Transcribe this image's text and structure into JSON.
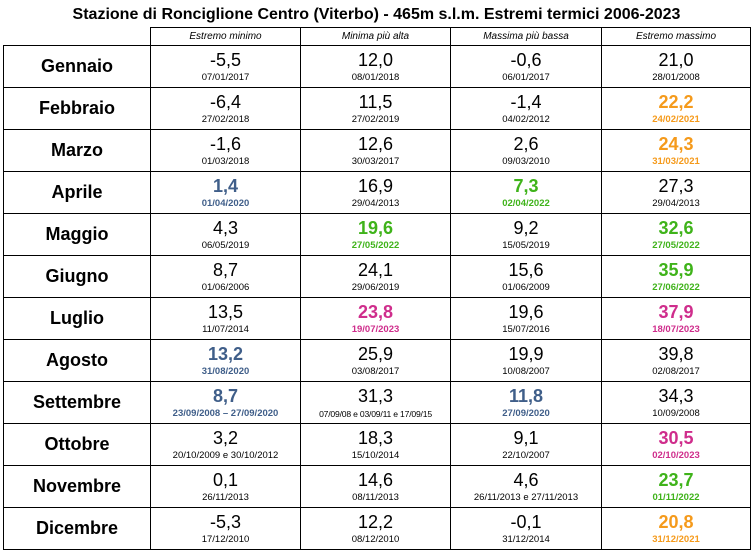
{
  "title": "Stazione di Ronciglione Centro (Viterbo)  - 465m s.l.m. Estremi termici 2006-2023",
  "headers": [
    "Estremo minimo",
    "Minima più alta",
    "Massima più bassa",
    "Estremo massimo"
  ],
  "colors": {
    "blue": "#3f5e89",
    "green": "#3fb31a",
    "orange": "#f59a1b",
    "magenta": "#cf2d8c",
    "black": "#000000"
  },
  "rows": [
    {
      "month": "Gennaio",
      "cells": [
        {
          "value": "-5,5",
          "date": "07/01/2017",
          "color": "black"
        },
        {
          "value": "12,0",
          "date": "08/01/2018",
          "color": "black"
        },
        {
          "value": "-0,6",
          "date": "06/01/2017",
          "color": "black"
        },
        {
          "value": "21,0",
          "date": "28/01/2008",
          "color": "black"
        }
      ]
    },
    {
      "month": "Febbraio",
      "cells": [
        {
          "value": "-6,4",
          "date": "27/02/2018",
          "color": "black"
        },
        {
          "value": "11,5",
          "date": "27/02/2019",
          "color": "black"
        },
        {
          "value": "-1,4",
          "date": "04/02/2012",
          "color": "black"
        },
        {
          "value": "22,2",
          "date": "24/02/2021",
          "color": "orange"
        }
      ]
    },
    {
      "month": "Marzo",
      "cells": [
        {
          "value": "-1,6",
          "date": "01/03/2018",
          "color": "black"
        },
        {
          "value": "12,6",
          "date": "30/03/2017",
          "color": "black"
        },
        {
          "value": "2,6",
          "date": "09/03/2010",
          "color": "black"
        },
        {
          "value": "24,3",
          "date": "31/03/2021",
          "color": "orange"
        }
      ]
    },
    {
      "month": "Aprile",
      "cells": [
        {
          "value": "1,4",
          "date": "01/04/2020",
          "color": "blue"
        },
        {
          "value": "16,9",
          "date": "29/04/2013",
          "color": "black"
        },
        {
          "value": "7,3",
          "date": "02/04/2022",
          "color": "green"
        },
        {
          "value": "27,3",
          "date": "29/04/2013",
          "color": "black"
        }
      ]
    },
    {
      "month": "Maggio",
      "cells": [
        {
          "value": "4,3",
          "date": "06/05/2019",
          "color": "black"
        },
        {
          "value": "19,6",
          "date": "27/05/2022",
          "color": "green"
        },
        {
          "value": "9,2",
          "date": "15/05/2019",
          "color": "black"
        },
        {
          "value": "32,6",
          "date": "27/05/2022",
          "color": "green"
        }
      ]
    },
    {
      "month": "Giugno",
      "cells": [
        {
          "value": "8,7",
          "date": "01/06/2006",
          "color": "black"
        },
        {
          "value": "24,1",
          "date": "29/06/2019",
          "color": "black"
        },
        {
          "value": "15,6",
          "date": "01/06/2009",
          "color": "black"
        },
        {
          "value": "35,9",
          "date": "27/06/2022",
          "color": "green"
        }
      ]
    },
    {
      "month": "Luglio",
      "cells": [
        {
          "value": "13,5",
          "date": "11/07/2014",
          "color": "black"
        },
        {
          "value": "23,8",
          "date": "19/07/2023",
          "color": "magenta"
        },
        {
          "value": "19,6",
          "date": "15/07/2016",
          "color": "black"
        },
        {
          "value": "37,9",
          "date": "18/07/2023",
          "color": "magenta"
        }
      ]
    },
    {
      "month": "Agosto",
      "cells": [
        {
          "value": "13,2",
          "date": "31/08/2020",
          "color": "blue"
        },
        {
          "value": "25,9",
          "date": "03/08/2017",
          "color": "black"
        },
        {
          "value": "19,9",
          "date": "10/08/2007",
          "color": "black"
        },
        {
          "value": "39,8",
          "date": "02/08/2017",
          "color": "black"
        }
      ]
    },
    {
      "month": "Settembre",
      "cells": [
        {
          "value": "8,7",
          "date": "23/09/2008 – 27/09/2020",
          "color": "blue"
        },
        {
          "value": "31,3",
          "date": "07/09/08 e 03/09/11 e 17/09/15",
          "color": "black",
          "tiny": true
        },
        {
          "value": "11,8",
          "date": "27/09/2020",
          "color": "blue"
        },
        {
          "value": "34,3",
          "date": "10/09/2008",
          "color": "black"
        }
      ]
    },
    {
      "month": "Ottobre",
      "cells": [
        {
          "value": "3,2",
          "date": "20/10/2009 e 30/10/2012",
          "color": "black"
        },
        {
          "value": "18,3",
          "date": "15/10/2014",
          "color": "black"
        },
        {
          "value": "9,1",
          "date": "22/10/2007",
          "color": "black"
        },
        {
          "value": "30,5",
          "date": "02/10/2023",
          "color": "magenta"
        }
      ]
    },
    {
      "month": "Novembre",
      "cells": [
        {
          "value": "0,1",
          "date": "26/11/2013",
          "color": "black"
        },
        {
          "value": "14,6",
          "date": "08/11/2013",
          "color": "black"
        },
        {
          "value": "4,6",
          "date": "26/11/2013 e 27/11/2013",
          "color": "black"
        },
        {
          "value": "23,7",
          "date": "01/11/2022",
          "color": "green"
        }
      ]
    },
    {
      "month": "Dicembre",
      "cells": [
        {
          "value": "-5,3",
          "date": "17/12/2010",
          "color": "black"
        },
        {
          "value": "12,2",
          "date": "08/12/2010",
          "color": "black"
        },
        {
          "value": "-0,1",
          "date": "31/12/2014",
          "color": "black"
        },
        {
          "value": "20,8",
          "date": "31/12/2021",
          "color": "orange"
        }
      ]
    }
  ]
}
